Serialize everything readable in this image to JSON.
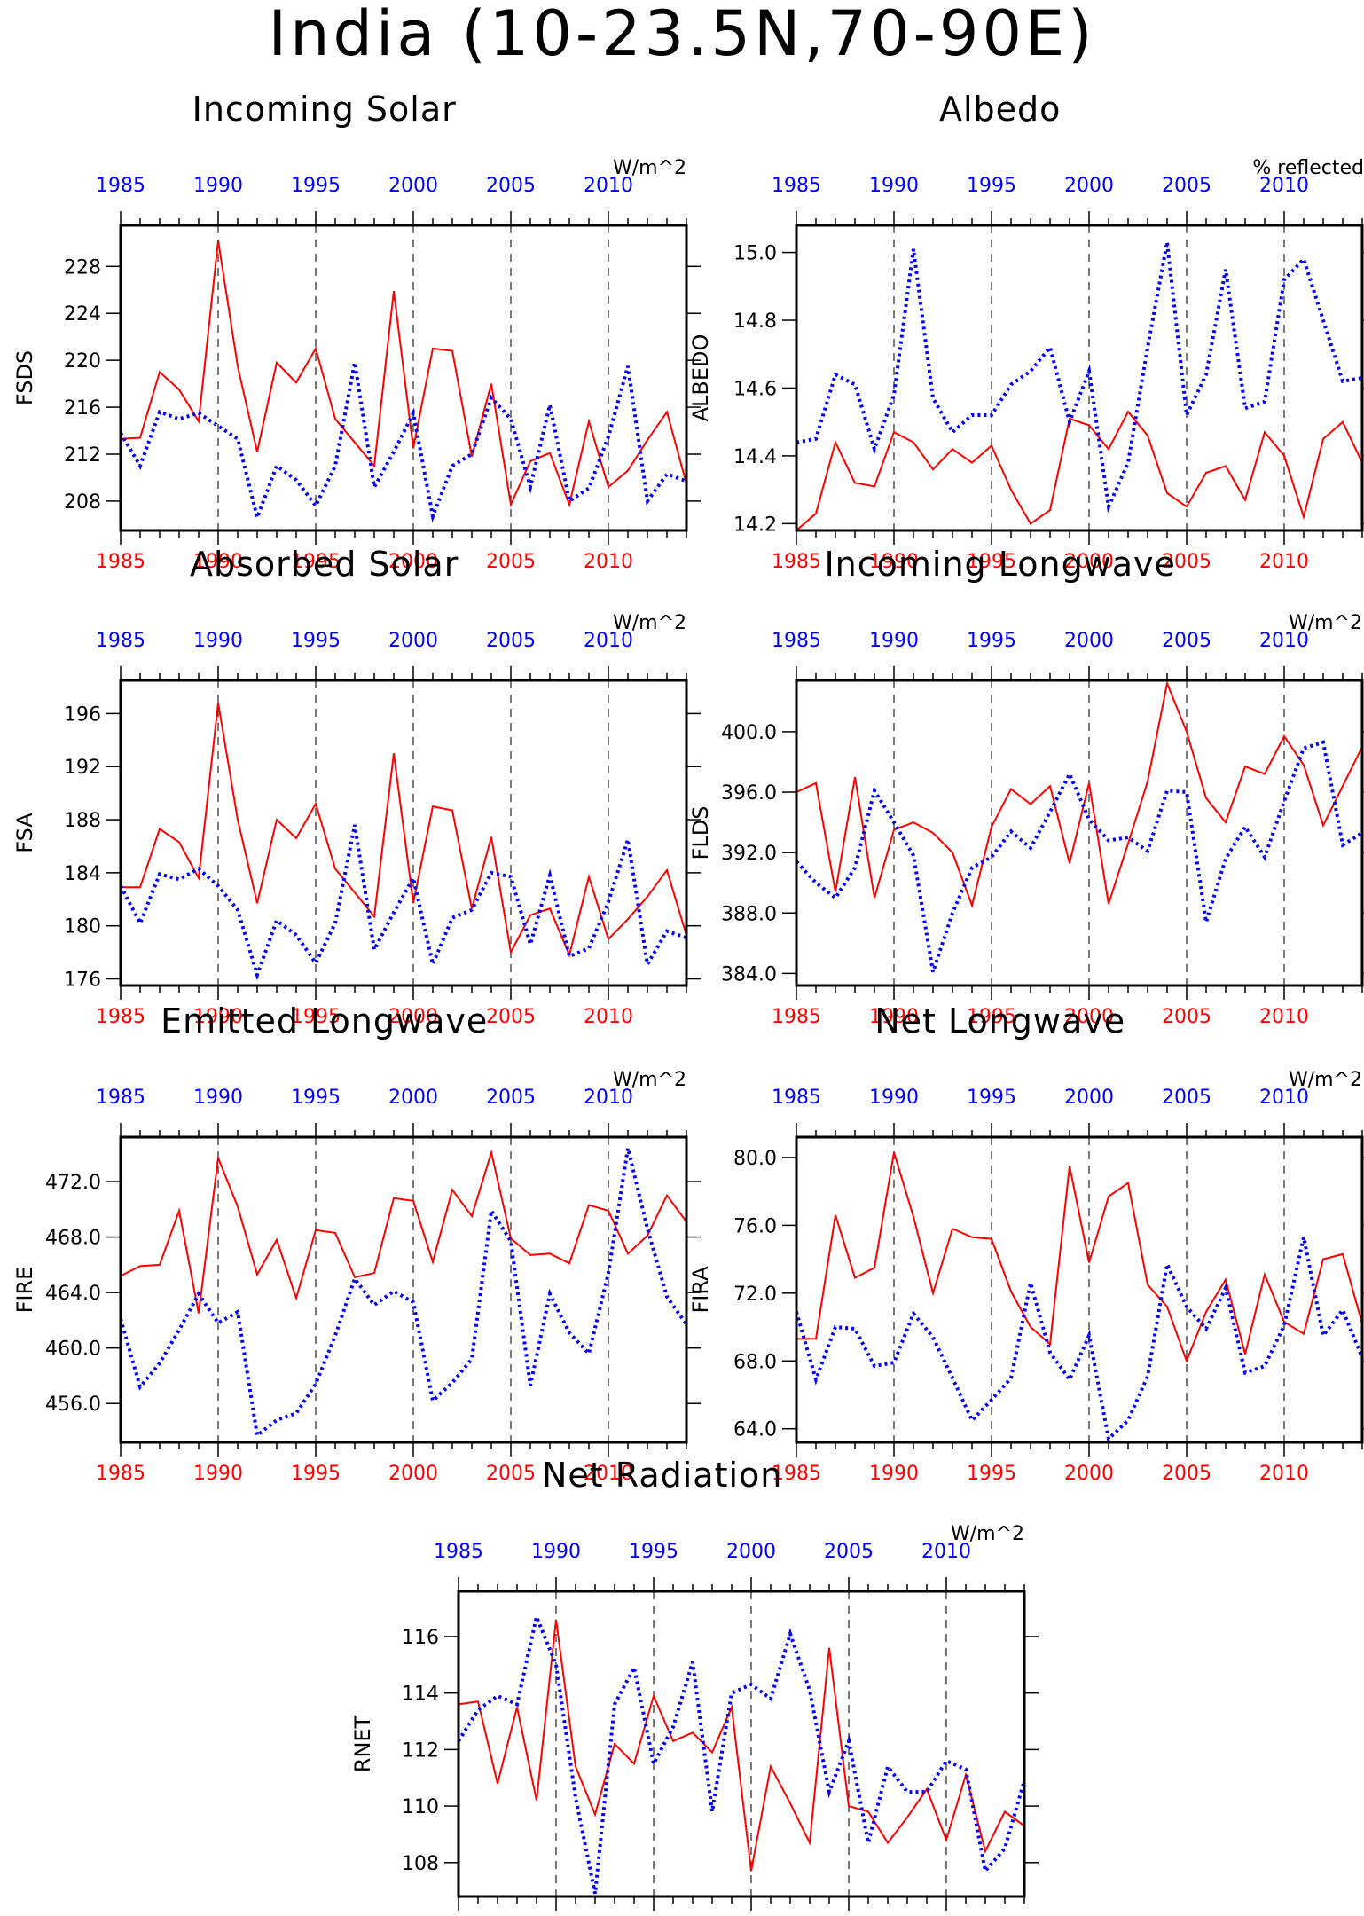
{
  "title": "India (10-23.5N,70-90E)",
  "colors": {
    "series_a": "#ff0000",
    "series_b": "#0000ff",
    "axis": "#000000"
  },
  "chart_data": [
    {
      "type": "line",
      "title": "Incoming Solar",
      "units": "W/m^2",
      "ylabel": "FSDS",
      "x": [
        1985,
        1986,
        1987,
        1988,
        1989,
        1990,
        1991,
        1992,
        1993,
        1994,
        1995,
        1996,
        1997,
        1998,
        1999,
        2000,
        2001,
        2002,
        2003,
        2004,
        2005,
        2006,
        2007,
        2008,
        2009,
        2010,
        2011,
        2012,
        2013,
        2014
      ],
      "xlim": [
        1985,
        2014
      ],
      "ylim": [
        205.5,
        231.5
      ],
      "yticks": [
        208,
        212,
        216,
        220,
        224,
        228
      ],
      "ytick_labels": [
        "208",
        "212",
        "216",
        "220",
        "224",
        "228"
      ],
      "xticks": [
        1985,
        1990,
        1995,
        2000,
        2005,
        2010
      ],
      "xtick_labels": [
        "1985",
        "1990",
        "1995",
        "2000",
        "2005",
        "2010"
      ],
      "series": [
        {
          "values": [
            213.3,
            213.4,
            219.0,
            217.5,
            214.8,
            230.2,
            219.5,
            212.2,
            219.8,
            218.1,
            221.0,
            215.0,
            213.0,
            211.0,
            225.9,
            212.5,
            221.0,
            220.8,
            211.8,
            218.0,
            207.7,
            211.4,
            212.1,
            207.7,
            214.8,
            209.2,
            210.6,
            213.2,
            215.6,
            209.5
          ]
        },
        {
          "values": [
            213.8,
            211.0,
            215.6,
            215.0,
            215.5,
            214.4,
            213.3,
            206.6,
            211.0,
            209.8,
            207.6,
            211.0,
            219.8,
            209.2,
            212.2,
            215.5,
            206.7,
            211.0,
            212.0,
            216.8,
            215.0,
            209.2,
            216.2,
            208.0,
            209.1,
            213.5,
            219.5,
            208.0,
            210.3,
            209.7
          ]
        }
      ]
    },
    {
      "type": "line",
      "title": "Albedo",
      "units": "% reflected",
      "ylabel": "ALBEDO",
      "x": [
        1985,
        1986,
        1987,
        1988,
        1989,
        1990,
        1991,
        1992,
        1993,
        1994,
        1995,
        1996,
        1997,
        1998,
        1999,
        2000,
        2001,
        2002,
        2003,
        2004,
        2005,
        2006,
        2007,
        2008,
        2009,
        2010,
        2011,
        2012,
        2013,
        2014
      ],
      "xlim": [
        1985,
        2014
      ],
      "ylim": [
        14.18,
        15.08
      ],
      "yticks": [
        14.2,
        14.4,
        14.6,
        14.8,
        15.0
      ],
      "ytick_labels": [
        "14.2",
        "14.4",
        "14.6",
        "14.8",
        "15.0"
      ],
      "xticks": [
        1985,
        1990,
        1995,
        2000,
        2005,
        2010
      ],
      "xtick_labels": [
        "1985",
        "1990",
        "1995",
        "2000",
        "2005",
        "2010"
      ],
      "series": [
        {
          "values": [
            14.18,
            14.23,
            14.44,
            14.32,
            14.31,
            14.47,
            14.44,
            14.36,
            14.42,
            14.38,
            14.43,
            14.3,
            14.2,
            14.24,
            14.51,
            14.49,
            14.42,
            14.53,
            14.46,
            14.29,
            14.25,
            14.35,
            14.37,
            14.27,
            14.47,
            14.4,
            14.22,
            14.45,
            14.5,
            14.38
          ]
        },
        {
          "values": [
            14.44,
            14.45,
            14.64,
            14.61,
            14.42,
            14.58,
            15.01,
            14.57,
            14.47,
            14.52,
            14.52,
            14.61,
            14.65,
            14.72,
            14.5,
            14.65,
            14.25,
            14.38,
            14.72,
            15.03,
            14.52,
            14.64,
            14.95,
            14.54,
            14.56,
            14.92,
            14.98,
            14.8,
            14.62,
            14.63
          ]
        }
      ]
    },
    {
      "type": "line",
      "title": "Absorbed Solar",
      "units": "W/m^2",
      "ylabel": "FSA",
      "x": [
        1985,
        1986,
        1987,
        1988,
        1989,
        1990,
        1991,
        1992,
        1993,
        1994,
        1995,
        1996,
        1997,
        1998,
        1999,
        2000,
        2001,
        2002,
        2003,
        2004,
        2005,
        2006,
        2007,
        2008,
        2009,
        2010,
        2011,
        2012,
        2013,
        2014
      ],
      "xlim": [
        1985,
        2014
      ],
      "ylim": [
        175.5,
        198.5
      ],
      "yticks": [
        176,
        180,
        184,
        188,
        192,
        196
      ],
      "ytick_labels": [
        "176",
        "180",
        "184",
        "188",
        "192",
        "196"
      ],
      "xticks": [
        1985,
        1990,
        1995,
        2000,
        2005,
        2010
      ],
      "xtick_labels": [
        "1985",
        "1990",
        "1995",
        "2000",
        "2005",
        "2010"
      ],
      "series": [
        {
          "values": [
            182.9,
            182.9,
            187.3,
            186.3,
            183.6,
            196.8,
            188.0,
            181.7,
            188.0,
            186.6,
            189.2,
            184.3,
            182.5,
            180.7,
            193.0,
            181.7,
            189.0,
            188.7,
            181.3,
            186.7,
            178.0,
            180.8,
            181.3,
            177.8,
            183.7,
            179.0,
            180.5,
            182.2,
            184.2,
            179.3
          ]
        },
        {
          "values": [
            183.0,
            180.2,
            183.9,
            183.5,
            184.3,
            183.0,
            181.2,
            176.3,
            180.4,
            179.3,
            177.2,
            180.2,
            187.6,
            178.2,
            181.0,
            183.6,
            177.1,
            180.6,
            181.2,
            184.0,
            183.7,
            178.6,
            183.8,
            177.7,
            178.3,
            181.8,
            186.5,
            177.1,
            179.6,
            179.1
          ]
        }
      ]
    },
    {
      "type": "line",
      "title": "Incoming Longwave",
      "units": "W/m^2",
      "ylabel": "FLDS",
      "x": [
        1985,
        1986,
        1987,
        1988,
        1989,
        1990,
        1991,
        1992,
        1993,
        1994,
        1995,
        1996,
        1997,
        1998,
        1999,
        2000,
        2001,
        2002,
        2003,
        2004,
        2005,
        2006,
        2007,
        2008,
        2009,
        2010,
        2011,
        2012,
        2013,
        2014
      ],
      "xlim": [
        1985,
        2014
      ],
      "ylim": [
        383.2,
        403.4
      ],
      "yticks": [
        384,
        388,
        392,
        396,
        400
      ],
      "ytick_labels": [
        "384.0",
        "388.0",
        "392.0",
        "396.0",
        "400.0"
      ],
      "xticks": [
        1985,
        1990,
        1995,
        2000,
        2005,
        2010
      ],
      "xtick_labels": [
        "1985",
        "1990",
        "1995",
        "2000",
        "2005",
        "2010"
      ],
      "series": [
        {
          "values": [
            396.0,
            396.6,
            389.4,
            397.0,
            389.0,
            393.5,
            394.0,
            393.3,
            392.0,
            388.5,
            393.7,
            396.2,
            395.2,
            396.4,
            391.3,
            396.6,
            388.6,
            392.6,
            396.7,
            403.2,
            400.0,
            395.6,
            394.0,
            397.7,
            397.2,
            399.7,
            397.8,
            393.8,
            396.4,
            399.0
          ]
        },
        {
          "values": [
            391.4,
            390.0,
            389.0,
            391.0,
            396.1,
            394.0,
            391.8,
            384.1,
            388.0,
            391.0,
            391.7,
            393.4,
            392.3,
            394.7,
            397.2,
            394.2,
            392.8,
            393.0,
            392.1,
            396.1,
            396.0,
            387.4,
            391.6,
            393.7,
            391.7,
            395.4,
            398.9,
            399.3,
            392.5,
            393.3
          ]
        }
      ]
    },
    {
      "type": "line",
      "title": "Emitted Longwave",
      "units": "W/m^2",
      "ylabel": "FIRE",
      "x": [
        1985,
        1986,
        1987,
        1988,
        1989,
        1990,
        1991,
        1992,
        1993,
        1994,
        1995,
        1996,
        1997,
        1998,
        1999,
        2000,
        2001,
        2002,
        2003,
        2004,
        2005,
        2006,
        2007,
        2008,
        2009,
        2010,
        2011,
        2012,
        2013,
        2014
      ],
      "xlim": [
        1985,
        2014
      ],
      "ylim": [
        453.2,
        475.2
      ],
      "yticks": [
        456,
        460,
        464,
        468,
        472
      ],
      "ytick_labels": [
        "456.0",
        "460.0",
        "464.0",
        "468.0",
        "472.0"
      ],
      "xticks": [
        1985,
        1990,
        1995,
        2000,
        2005,
        2010
      ],
      "xtick_labels": [
        "1985",
        "1990",
        "1995",
        "2000",
        "2005",
        "2010"
      ],
      "series": [
        {
          "values": [
            465.2,
            465.9,
            466.0,
            469.9,
            462.5,
            473.7,
            470.2,
            465.3,
            467.8,
            463.6,
            468.5,
            468.3,
            465.1,
            465.4,
            470.8,
            470.6,
            466.2,
            471.4,
            469.5,
            474.1,
            467.9,
            466.7,
            466.8,
            466.1,
            470.3,
            469.9,
            466.8,
            468.1,
            471.0,
            469.1
          ]
        },
        {
          "values": [
            462.1,
            457.2,
            458.9,
            461.3,
            463.9,
            461.8,
            462.6,
            453.7,
            454.8,
            455.3,
            457.4,
            460.9,
            465.0,
            463.1,
            464.1,
            463.3,
            456.2,
            457.5,
            459.2,
            469.9,
            467.7,
            457.3,
            463.9,
            461.1,
            459.6,
            465.4,
            474.4,
            468.6,
            463.7,
            461.7
          ]
        }
      ]
    },
    {
      "type": "line",
      "title": "Net Longwave",
      "units": "W/m^2",
      "ylabel": "FIRA",
      "x": [
        1985,
        1986,
        1987,
        1988,
        1989,
        1990,
        1991,
        1992,
        1993,
        1994,
        1995,
        1996,
        1997,
        1998,
        1999,
        2000,
        2001,
        2002,
        2003,
        2004,
        2005,
        2006,
        2007,
        2008,
        2009,
        2010,
        2011,
        2012,
        2013,
        2014
      ],
      "xlim": [
        1985,
        2014
      ],
      "ylim": [
        63.2,
        81.2
      ],
      "yticks": [
        64,
        68,
        72,
        76,
        80
      ],
      "ytick_labels": [
        "64.0",
        "68.0",
        "72.0",
        "76.0",
        "80.0"
      ],
      "xticks": [
        1985,
        1990,
        1995,
        2000,
        2005,
        2010
      ],
      "xtick_labels": [
        "1985",
        "1990",
        "1995",
        "2000",
        "2005",
        "2010"
      ],
      "series": [
        {
          "values": [
            69.3,
            69.3,
            76.6,
            72.9,
            73.5,
            80.3,
            76.5,
            72.0,
            75.8,
            75.3,
            75.2,
            72.1,
            70.0,
            69.0,
            79.5,
            73.8,
            77.7,
            78.5,
            72.5,
            71.2,
            68.0,
            70.9,
            72.8,
            68.4,
            73.1,
            70.3,
            69.6,
            74.0,
            74.3,
            70.2
          ]
        },
        {
          "values": [
            70.9,
            66.9,
            70.0,
            69.9,
            67.7,
            67.9,
            70.8,
            69.4,
            67.0,
            64.5,
            65.7,
            67.0,
            72.6,
            68.5,
            66.9,
            69.5,
            63.4,
            64.5,
            67.1,
            73.7,
            71.2,
            69.9,
            72.3,
            67.3,
            67.7,
            70.1,
            75.3,
            69.5,
            71.0,
            68.2
          ]
        }
      ]
    },
    {
      "type": "line",
      "title": "Net Radiation",
      "units": "W/m^2",
      "ylabel": "RNET",
      "x": [
        1985,
        1986,
        1987,
        1988,
        1989,
        1990,
        1991,
        1992,
        1993,
        1994,
        1995,
        1996,
        1997,
        1998,
        1999,
        2000,
        2001,
        2002,
        2003,
        2004,
        2005,
        2006,
        2007,
        2008,
        2009,
        2010,
        2011,
        2012,
        2013,
        2014
      ],
      "xlim": [
        1985,
        2014
      ],
      "ylim": [
        106.8,
        117.6
      ],
      "yticks": [
        108,
        110,
        112,
        114,
        116
      ],
      "ytick_labels": [
        "108",
        "110",
        "112",
        "114",
        "116"
      ],
      "xticks": [
        1985,
        1990,
        1995,
        2000,
        2005,
        2010
      ],
      "xtick_labels": [
        "1985",
        "1990",
        "1995",
        "2000",
        "2005",
        "2010"
      ],
      "series": [
        {
          "values": [
            113.6,
            113.7,
            110.8,
            113.5,
            110.2,
            116.6,
            111.4,
            109.7,
            112.2,
            111.5,
            113.9,
            112.3,
            112.6,
            111.9,
            113.5,
            107.7,
            111.4,
            110.1,
            108.7,
            115.6,
            110.0,
            109.8,
            108.7,
            109.6,
            110.6,
            108.8,
            111.1,
            108.4,
            109.8,
            109.3
          ]
        },
        {
          "values": [
            112.3,
            113.4,
            113.9,
            113.6,
            116.7,
            115.0,
            110.3,
            106.9,
            113.6,
            114.9,
            111.5,
            112.8,
            115.1,
            109.8,
            114.0,
            114.3,
            113.8,
            116.1,
            114.1,
            110.5,
            112.3,
            108.7,
            111.4,
            110.5,
            110.5,
            111.6,
            111.3,
            107.7,
            108.5,
            110.9
          ]
        }
      ]
    }
  ]
}
